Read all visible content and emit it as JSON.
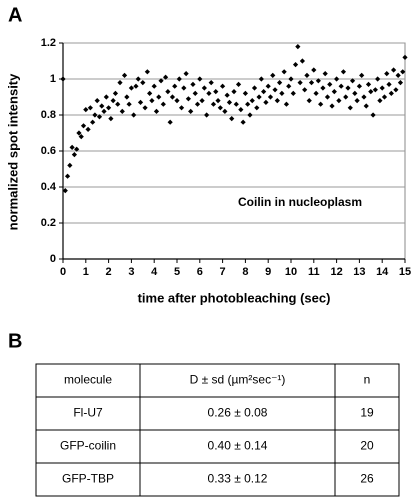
{
  "panels": [
    "A",
    "B"
  ],
  "chart_data": {
    "type": "scatter",
    "xlabel": "time after photobleaching (sec)",
    "ylabel": "normalized spot intensity",
    "annotation": "Coilin in nucleoplasm",
    "xlim": [
      0,
      15
    ],
    "xticks": [
      0,
      1,
      2,
      3,
      4,
      5,
      6,
      7,
      8,
      9,
      10,
      11,
      12,
      13,
      14,
      15
    ],
    "ylim": [
      0,
      1.2
    ],
    "yticks": [
      0,
      0.2,
      0.4,
      0.6,
      0.8,
      1,
      1.2
    ],
    "grid": true,
    "color": "#000000",
    "x": [
      0,
      0.1,
      0.2,
      0.3,
      0.4,
      0.5,
      0.6,
      0.7,
      0.8,
      0.9,
      1,
      1.1,
      1.2,
      1.3,
      1.4,
      1.5,
      1.6,
      1.7,
      1.8,
      1.9,
      2,
      2.1,
      2.2,
      2.3,
      2.4,
      2.5,
      2.6,
      2.7,
      2.8,
      2.9,
      3,
      3.1,
      3.2,
      3.3,
      3.4,
      3.5,
      3.6,
      3.7,
      3.8,
      3.9,
      4,
      4.1,
      4.2,
      4.3,
      4.4,
      4.5,
      4.6,
      4.7,
      4.8,
      4.9,
      5,
      5.1,
      5.2,
      5.3,
      5.4,
      5.5,
      5.6,
      5.7,
      5.8,
      5.9,
      6,
      6.1,
      6.2,
      6.3,
      6.4,
      6.5,
      6.6,
      6.7,
      6.8,
      6.9,
      7,
      7.1,
      7.2,
      7.3,
      7.4,
      7.5,
      7.6,
      7.7,
      7.8,
      7.9,
      8,
      8.1,
      8.2,
      8.3,
      8.4,
      8.5,
      8.6,
      8.7,
      8.8,
      8.9,
      9,
      9.1,
      9.2,
      9.3,
      9.4,
      9.5,
      9.6,
      9.7,
      9.8,
      9.9,
      10,
      10.1,
      10.2,
      10.3,
      10.4,
      10.5,
      10.6,
      10.7,
      10.8,
      10.9,
      11,
      11.1,
      11.2,
      11.3,
      11.4,
      11.5,
      11.6,
      11.7,
      11.8,
      11.9,
      12,
      12.1,
      12.2,
      12.3,
      12.4,
      12.5,
      12.6,
      12.7,
      12.8,
      12.9,
      13,
      13.1,
      13.2,
      13.3,
      13.4,
      13.5,
      13.6,
      13.7,
      13.8,
      13.9,
      14,
      14.1,
      14.2,
      14.3,
      14.4,
      14.5,
      14.6,
      14.7,
      14.8,
      14.9,
      15
    ],
    "values": [
      1.0,
      0.38,
      0.46,
      0.52,
      0.62,
      0.58,
      0.61,
      0.7,
      0.68,
      0.74,
      0.83,
      0.72,
      0.84,
      0.76,
      0.8,
      0.88,
      0.79,
      0.85,
      0.82,
      0.9,
      0.84,
      0.78,
      0.88,
      0.92,
      0.86,
      0.98,
      0.82,
      1.02,
      0.9,
      0.86,
      0.95,
      0.8,
      0.96,
      1.0,
      0.87,
      0.98,
      0.84,
      1.04,
      0.92,
      0.88,
      0.96,
      0.82,
      0.9,
      0.99,
      0.86,
      1.01,
      0.93,
      0.76,
      0.9,
      0.96,
      0.88,
      1.0,
      0.84,
      0.95,
      1.03,
      0.89,
      0.82,
      0.97,
      0.92,
      0.86,
      1.0,
      0.88,
      0.95,
      0.8,
      0.92,
      0.98,
      0.86,
      0.93,
      0.88,
      0.84,
      0.96,
      0.82,
      0.91,
      0.87,
      0.78,
      0.93,
      0.86,
      0.97,
      0.83,
      0.76,
      0.92,
      0.86,
      0.8,
      0.88,
      0.95,
      0.84,
      0.9,
      1.0,
      0.93,
      0.87,
      0.96,
      0.9,
      1.02,
      0.94,
      0.88,
      0.98,
      0.92,
      1.04,
      0.86,
      0.96,
      1.0,
      0.92,
      1.08,
      1.18,
      0.98,
      1.1,
      0.94,
      1.02,
      0.88,
      0.98,
      1.05,
      0.92,
      0.99,
      0.86,
      0.95,
      1.03,
      0.9,
      0.97,
      0.85,
      0.93,
      1.0,
      0.88,
      0.96,
      1.04,
      0.9,
      0.95,
      0.84,
      0.99,
      0.92,
      0.88,
      0.96,
      1.02,
      0.9,
      0.85,
      0.97,
      0.93,
      0.8,
      0.94,
      1.0,
      0.88,
      0.95,
      0.9,
      1.03,
      0.97,
      0.92,
      1.05,
      0.94,
      1.02,
      0.98,
      1.04,
      1.12
    ]
  },
  "table": {
    "header": [
      "molecule",
      "D ± sd (µm²sec⁻¹)",
      "n"
    ],
    "rows": [
      [
        "Fl-U7",
        "0.26 ± 0.08",
        "19"
      ],
      [
        "GFP-coilin",
        "0.40 ± 0.14",
        "20"
      ],
      [
        "GFP-TBP",
        "0.33 ± 0.12",
        "26"
      ]
    ]
  }
}
